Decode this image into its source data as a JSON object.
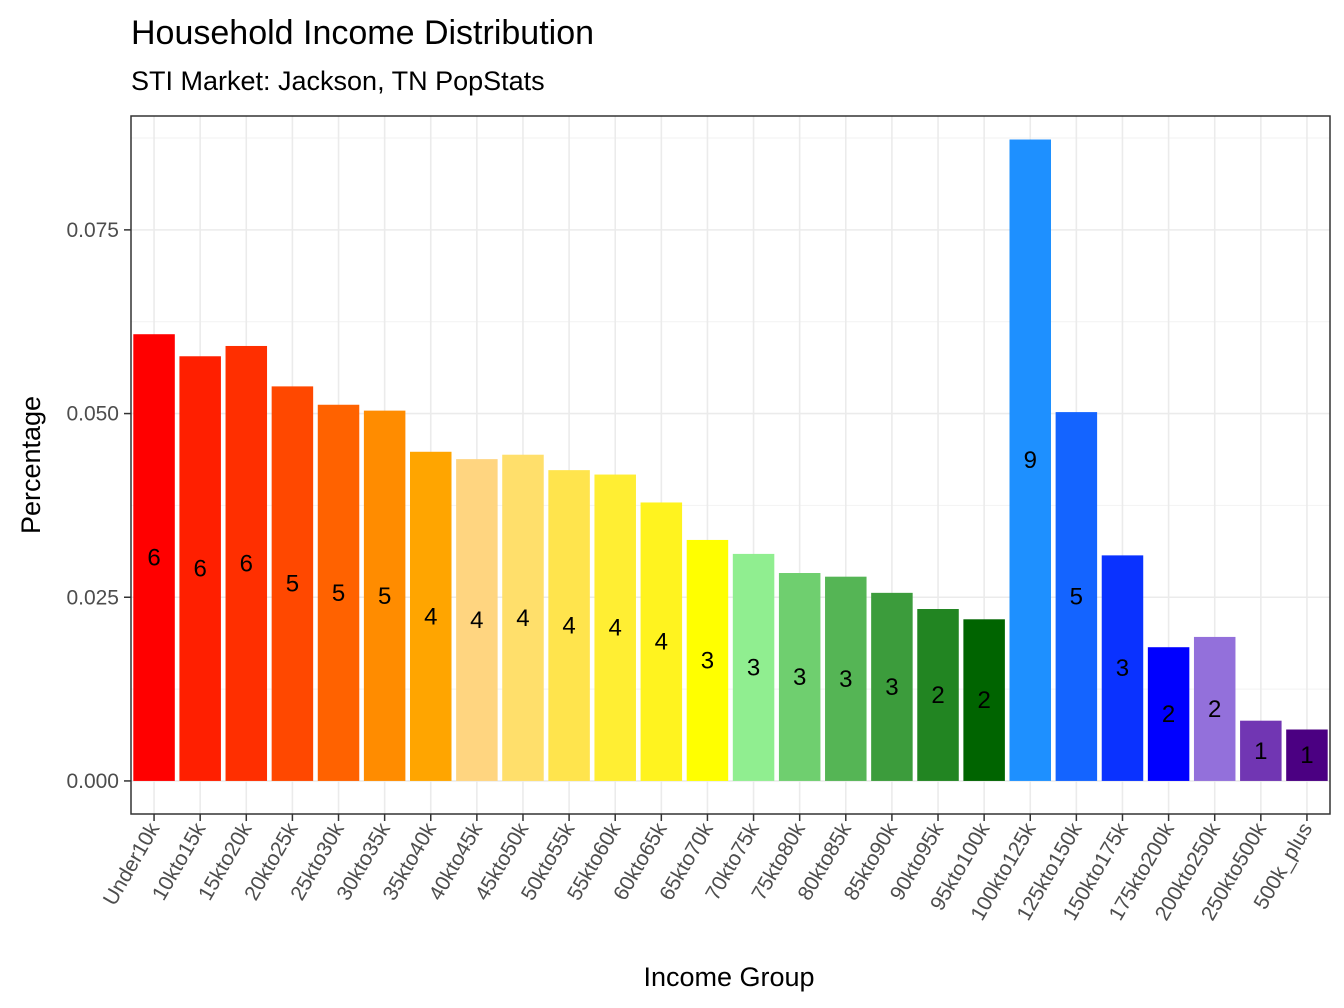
{
  "chart_data": {
    "type": "bar",
    "title": "Household Income Distribution",
    "subtitle": "STI Market: Jackson, TN PopStats",
    "xlabel": "Income Group",
    "ylabel": "Percentage",
    "ylim": [
      -0.0045,
      0.0905
    ],
    "yticks": [
      0.0,
      0.025,
      0.05,
      0.075
    ],
    "ytick_labels": [
      "0.000",
      "0.025",
      "0.050",
      "0.075"
    ],
    "grid": true,
    "categories": [
      "Under10k",
      "10kto15k",
      "15kto20k",
      "20kto25k",
      "25kto30k",
      "30kto35k",
      "35kto40k",
      "40kto45k",
      "45kto50k",
      "50kto55k",
      "55kto60k",
      "60kto65k",
      "65kto70k",
      "70kto75k",
      "75kto80k",
      "80kto85k",
      "85kto90k",
      "90kto95k",
      "95kto100k",
      "100kto125k",
      "125kto150k",
      "150kto175k",
      "175kto200k",
      "200kto250k",
      "250kto500k",
      "500k_plus"
    ],
    "values": [
      0.0608,
      0.0578,
      0.0592,
      0.0537,
      0.0512,
      0.0504,
      0.0448,
      0.0438,
      0.0444,
      0.0423,
      0.0417,
      0.0379,
      0.0328,
      0.0309,
      0.0283,
      0.0278,
      0.0256,
      0.0234,
      0.022,
      0.0873,
      0.0502,
      0.0307,
      0.0182,
      0.0196,
      0.0082,
      0.007
    ],
    "data_labels": [
      "6",
      "6",
      "6",
      "5",
      "5",
      "5",
      "4",
      "4",
      "4",
      "4",
      "4",
      "4",
      "3",
      "3",
      "3",
      "3",
      "3",
      "2",
      "2",
      "9",
      "5",
      "3",
      "2",
      "2",
      "1",
      "1"
    ],
    "colors": [
      "#ff0000",
      "#ff1f00",
      "#ff2f00",
      "#ff4800",
      "#ff6200",
      "#ff8c00",
      "#ffa500",
      "#ffd580",
      "#ffdf6b",
      "#ffe44d",
      "#ffee33",
      "#fff31f",
      "#ffff00",
      "#90ee90",
      "#6fcf6f",
      "#55b555",
      "#3c9c3c",
      "#228522",
      "#006400",
      "#1e90ff",
      "#1464ff",
      "#0a32ff",
      "#0000ff",
      "#9370db",
      "#7136b3",
      "#4b0082"
    ]
  }
}
